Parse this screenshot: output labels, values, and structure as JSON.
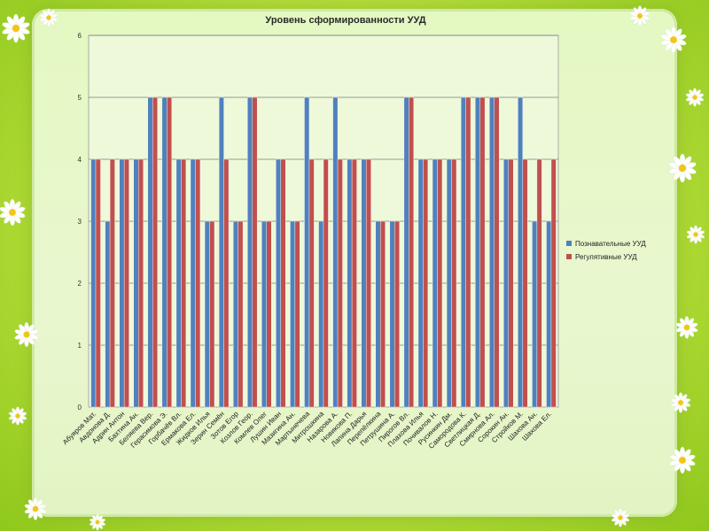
{
  "chart_data": {
    "type": "bar",
    "title": "Уровень сформированности УУД",
    "xlabel": "",
    "ylabel": "",
    "ylim": [
      0,
      6
    ],
    "yticks": [
      0,
      1,
      2,
      3,
      4,
      5,
      6
    ],
    "grid": true,
    "legend_position": "right",
    "categories": [
      "Абуяров Мат.",
      "Авдонова Д.",
      "Адрин Антон",
      "Бахтина Ан.",
      "Беляева Вер.",
      "Герасимова Э.",
      "Горбачёв Вл.",
      "Ермакова Ел.",
      "Жидков Илья",
      "Зерин Семён",
      "Зотов Егор",
      "Козлов Геор.",
      "Комлев Олег",
      "Лушин Иван",
      "Мазигина Ан.",
      "Мартынечева",
      "Митрошкина",
      "Назарова А.",
      "Новикова П.",
      "Лапина Дарья",
      "Перепёлкина",
      "Петрушина А.",
      "Пирогов Вл.",
      "Плахова Илья",
      "Почивалов Н.",
      "Русинкин Дм.",
      "Самородова К.",
      "Светлицкая Д.",
      "Смирнова Ал.",
      "Сорокин Ан.",
      "Стройков М.",
      "Шахова Ан.",
      "Шахова Ел."
    ],
    "series": [
      {
        "name": "Познавательные УУД",
        "color": "#4f81bd",
        "values": [
          4,
          3,
          4,
          4,
          5,
          5,
          4,
          4,
          3,
          5,
          3,
          5,
          3,
          4,
          3,
          5,
          3,
          5,
          4,
          4,
          3,
          3,
          5,
          4,
          4,
          4,
          5,
          5,
          5,
          4,
          5,
          3,
          3
        ]
      },
      {
        "name": "Регулятивные УУД",
        "color": "#c0504d",
        "values": [
          4,
          4,
          4,
          4,
          5,
          5,
          4,
          4,
          3,
          4,
          3,
          5,
          3,
          4,
          3,
          4,
          4,
          4,
          4,
          4,
          3,
          3,
          5,
          4,
          4,
          4,
          5,
          5,
          5,
          4,
          4,
          4,
          4
        ]
      }
    ]
  }
}
